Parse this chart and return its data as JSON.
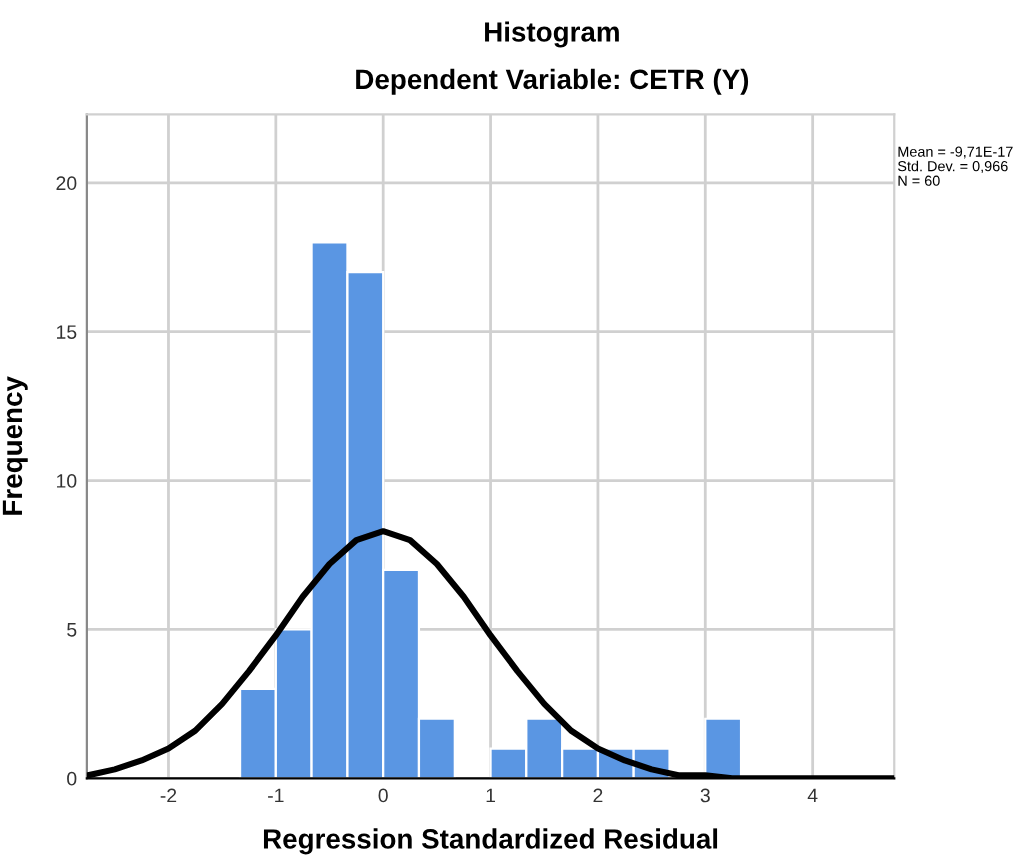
{
  "chart_data": {
    "type": "histogram",
    "title": "Histogram",
    "subtitle": "Dependent Variable: CETR (Y)",
    "xlabel": "Regression Standardized Residual",
    "ylabel": "Frequency",
    "annotations": [
      "Mean = -9,71E-17\nStd. Dev. = 0,966\nN = 60"
    ],
    "series": [
      {
        "color": "#5a96e3",
        "bins": [
          -1.333,
          -1.0,
          -0.667,
          -0.333,
          0,
          0.333,
          0.667,
          1.0,
          1.333,
          1.667,
          2.0,
          2.333,
          2.667,
          3.0,
          3.333
        ],
        "values": [
          3,
          5,
          18,
          17,
          7,
          2,
          0,
          1,
          2,
          1,
          1,
          1,
          0,
          2
        ]
      },
      {
        "type": "line",
        "color": "#000000",
        "x": [
          -2.75,
          -2.5,
          -2.25,
          -2,
          -1.75,
          -1.5,
          -1.25,
          -1,
          -0.75,
          -0.5,
          -0.25,
          0,
          0.25,
          0.5,
          0.75,
          1,
          1.25,
          1.5,
          1.75,
          2,
          2.25,
          2.5,
          2.75,
          3,
          3.25,
          3.5,
          3.75,
          4,
          4.25,
          4.5,
          4.75
        ],
        "values": [
          0.1,
          0.3,
          0.6,
          1.0,
          1.6,
          2.5,
          3.6,
          4.8,
          6.1,
          7.2,
          8.0,
          8.3,
          8.0,
          7.2,
          6.1,
          4.8,
          3.6,
          2.5,
          1.6,
          1.0,
          0.6,
          0.3,
          0.1,
          0.1,
          0,
          0,
          0,
          0,
          0,
          0,
          0
        ]
      }
    ],
    "xlim": [
      -2.76,
      4.76
    ],
    "ylim": [
      0,
      22.3
    ],
    "xticks": [
      -2,
      -1,
      0,
      1,
      2,
      3,
      4
    ],
    "yticks": [
      0,
      5,
      10,
      15,
      20
    ],
    "grid": true
  }
}
